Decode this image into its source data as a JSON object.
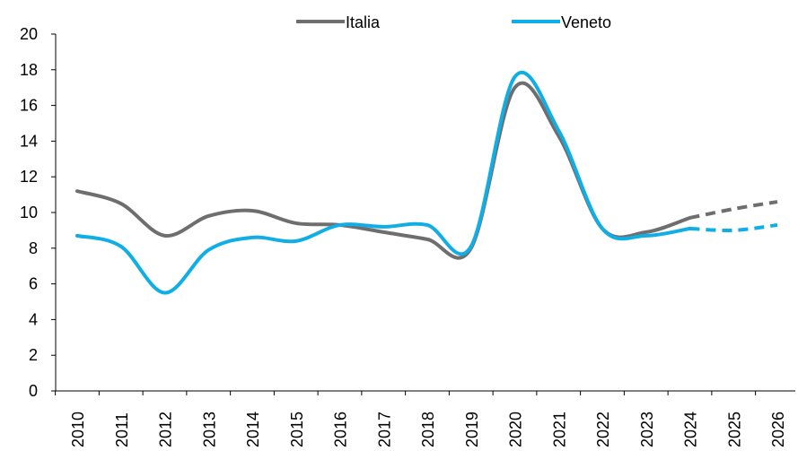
{
  "chart_data": {
    "type": "line",
    "categories": [
      "2010",
      "2011",
      "2012",
      "2013",
      "2014",
      "2015",
      "2016",
      "2017",
      "2018",
      "2019",
      "2020",
      "2021",
      "2022",
      "2023",
      "2024",
      "2025",
      "2026"
    ],
    "ylim": [
      0,
      20
    ],
    "yticks": [
      "0",
      "2",
      "4",
      "6",
      "8",
      "10",
      "12",
      "14",
      "16",
      "18",
      "20"
    ],
    "legend_position": "top",
    "grid": false,
    "series": [
      {
        "name": "Italia",
        "color": "#6E6E6E",
        "values": [
          11.2,
          10.5,
          8.7,
          9.8,
          10.1,
          9.4,
          9.3,
          8.9,
          8.5,
          8.0,
          17.0,
          14.3,
          9.1,
          8.9,
          9.7,
          10.2,
          10.6
        ],
        "projected_from": "2024"
      },
      {
        "name": "Veneto",
        "color": "#10AEE4",
        "values": [
          8.7,
          8.1,
          5.5,
          7.9,
          8.6,
          8.4,
          9.3,
          9.2,
          9.3,
          8.1,
          17.6,
          14.6,
          9.1,
          8.7,
          9.1,
          9.0,
          9.3
        ],
        "projected_from": "2024"
      }
    ]
  }
}
